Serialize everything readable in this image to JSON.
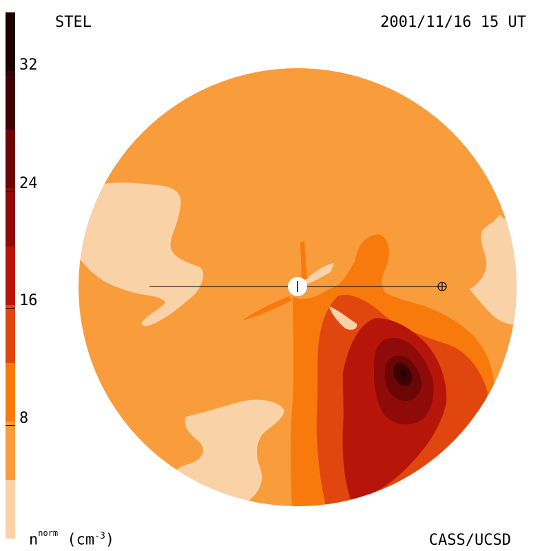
{
  "header": {
    "title": "STEL",
    "timestamp": "2001/11/16 15 UT"
  },
  "footer": {
    "units_symbol": "n",
    "units_superscript": "norm",
    "units_paren_open": "(cm",
    "units_exponent": "-3",
    "units_paren_close": ")",
    "credit": "CASS/UCSD"
  },
  "colorbar": {
    "tick_labels": [
      "32",
      "24",
      "16",
      "8"
    ],
    "tick_values": [
      32,
      24,
      16,
      8
    ],
    "range": [
      0,
      36
    ],
    "colors": [
      "#fad2a8",
      "#f89c3c",
      "#f97a0c",
      "#e2460f",
      "#b8150a",
      "#8e0b09",
      "#6a0606",
      "#3d0302",
      "#1e0101"
    ]
  },
  "map": {
    "background_color": "#f89c3c",
    "markers": [
      "sun-marker",
      "earth-marker"
    ]
  }
}
